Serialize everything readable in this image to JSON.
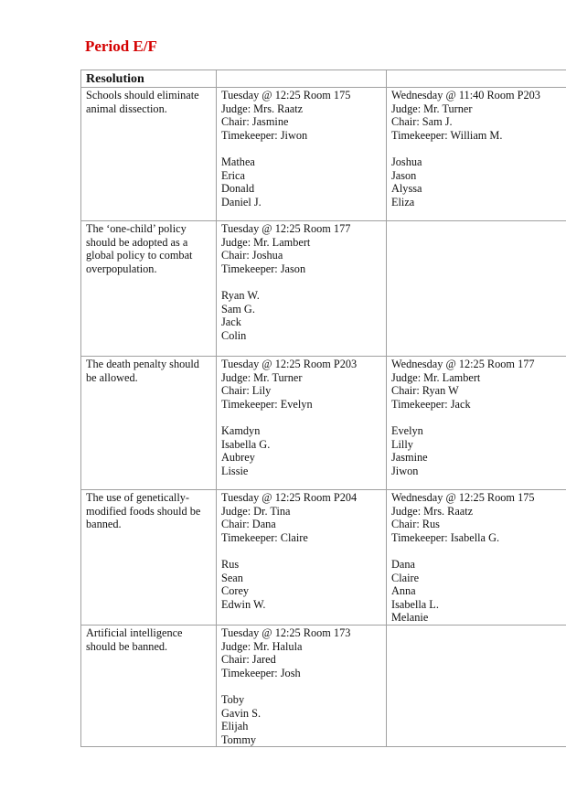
{
  "title": "Period E/F",
  "header": {
    "resolution": "Resolution",
    "col2": "",
    "col3": ""
  },
  "rows": [
    {
      "resolution": "Schools should eliminate animal dissection.",
      "sessions": [
        {
          "info": [
            "Tuesday @ 12:25 Room 175",
            "Judge:  Mrs. Raatz",
            "Chair: Jasmine",
            "Timekeeper: Jiwon"
          ],
          "members": [
            "Mathea",
            "Erica",
            "Donald",
            "Daniel J."
          ]
        },
        {
          "info": [
            "Wednesday @ 11:40 Room P203",
            "Judge:  Mr. Turner",
            "Chair:  Sam J.",
            "Timekeeper:  William M."
          ],
          "members": [
            "Joshua",
            "Jason",
            "Alyssa",
            "Eliza"
          ]
        }
      ]
    },
    {
      "resolution": "The ‘one-child’ policy should be adopted as a global policy to combat overpopulation.",
      "sessions": [
        {
          "info": [
            "Tuesday @ 12:25 Room 177",
            "Judge:  Mr. Lambert",
            "Chair:  Joshua",
            "Timekeeper:  Jason"
          ],
          "members": [
            "Ryan W.",
            "Sam G.",
            "Jack",
            "Colin"
          ]
        },
        {
          "info": [],
          "members": []
        }
      ]
    },
    {
      "resolution": "The death penalty should be allowed.",
      "sessions": [
        {
          "info": [
            "Tuesday @ 12:25 Room P203",
            "Judge:  Mr. Turner",
            "Chair:  Lily",
            "Timekeeper:  Evelyn"
          ],
          "members": [
            "Kamdyn",
            "Isabella G.",
            "Aubrey",
            "Lissie"
          ]
        },
        {
          "info": [
            "Wednesday @ 12:25 Room 177",
            "Judge:  Mr. Lambert",
            "Chair:  Ryan W",
            "Timekeeper:  Jack"
          ],
          "members": [
            "Evelyn",
            "Lilly",
            "Jasmine",
            "Jiwon"
          ]
        }
      ]
    },
    {
      "resolution": "The use of genetically-modified foods should be banned.",
      "sessions": [
        {
          "info": [
            "Tuesday @ 12:25 Room P204",
            "Judge: Dr. Tina",
            "Chair:  Dana",
            "Timekeeper:  Claire"
          ],
          "members": [
            "Rus",
            "Sean",
            "Corey",
            "Edwin W."
          ]
        },
        {
          "info": [
            "Wednesday @ 12:25 Room 175",
            "Judge:  Mrs. Raatz",
            "Chair:  Rus",
            "Timekeeper:  Isabella G."
          ],
          "members": [
            "Dana",
            "Claire",
            "Anna",
            "Isabella L.",
            "Melanie"
          ]
        }
      ]
    },
    {
      "resolution": "Artificial intelligence should be banned.",
      "sessions": [
        {
          "info": [
            "Tuesday @ 12:25 Room 173",
            "Judge:  Mr. Halula",
            "Chair:  Jared",
            "Timekeeper:  Josh"
          ],
          "members": [
            "Toby",
            "Gavin S.",
            "Elijah",
            "Tommy"
          ]
        },
        {
          "info": [],
          "members": []
        }
      ]
    }
  ]
}
